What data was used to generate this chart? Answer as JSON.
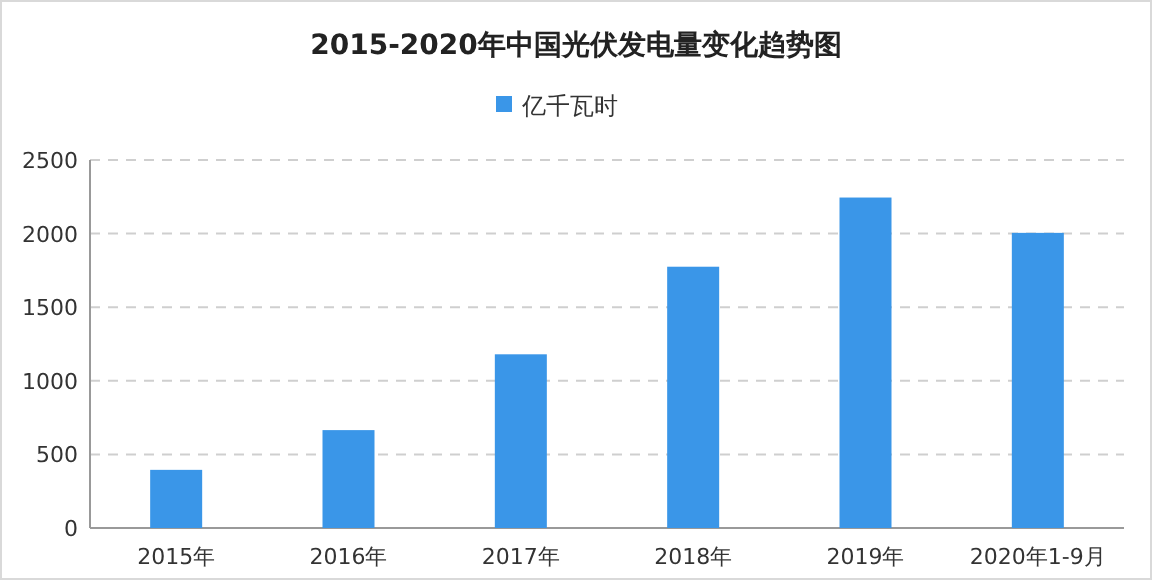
{
  "chart_data": {
    "type": "bar",
    "title": "2015-2020年中国光伏发电量变化趋势图",
    "categories": [
      "2015年",
      "2016年",
      "2017年",
      "2018年",
      "2019年",
      "2020年1-9月"
    ],
    "series": [
      {
        "name": "亿千瓦时",
        "color": "#3a96e8",
        "values": [
          395,
          665,
          1180,
          1775,
          2245,
          2005
        ]
      }
    ],
    "ylim": [
      0,
      2500
    ],
    "yticks": [
      0,
      500,
      1000,
      1500,
      2000,
      2500
    ],
    "grid": "y",
    "legend": "top"
  }
}
